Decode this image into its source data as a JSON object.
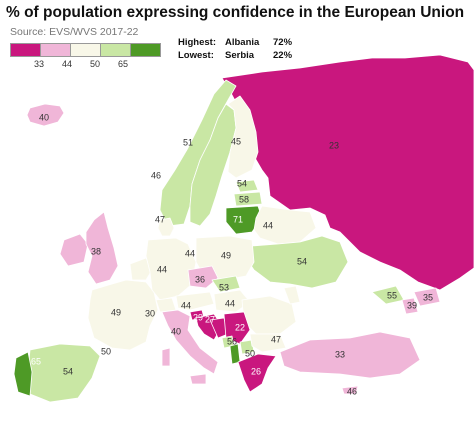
{
  "title": "% of population expressing confidence in the European Union",
  "source": "Source: EVS/WVS 2017-22",
  "legend": {
    "colors": [
      "#c9177e",
      "#f0b6d8",
      "#f8f7e8",
      "#c9e7a4",
      "#4e9a26"
    ],
    "ticks": [
      "33",
      "44",
      "50",
      "65"
    ]
  },
  "highlights": {
    "highest_label": "Highest:",
    "highest_country": "Albania",
    "highest_value": "72%",
    "lowest_label": "Lowest:",
    "lowest_country": "Serbia",
    "lowest_value": "22%"
  },
  "map_labels": [
    "40",
    "51",
    "45",
    "46",
    "23",
    "54",
    "58",
    "71",
    "47",
    "44",
    "44",
    "38",
    "44",
    "49",
    "54",
    "36",
    "53",
    "55",
    "35",
    "49",
    "44",
    "44",
    "39",
    "30",
    "29",
    "27",
    "22",
    "40",
    "56",
    "47",
    "33",
    "50",
    "50",
    "65",
    "54",
    "26",
    "46"
  ]
}
